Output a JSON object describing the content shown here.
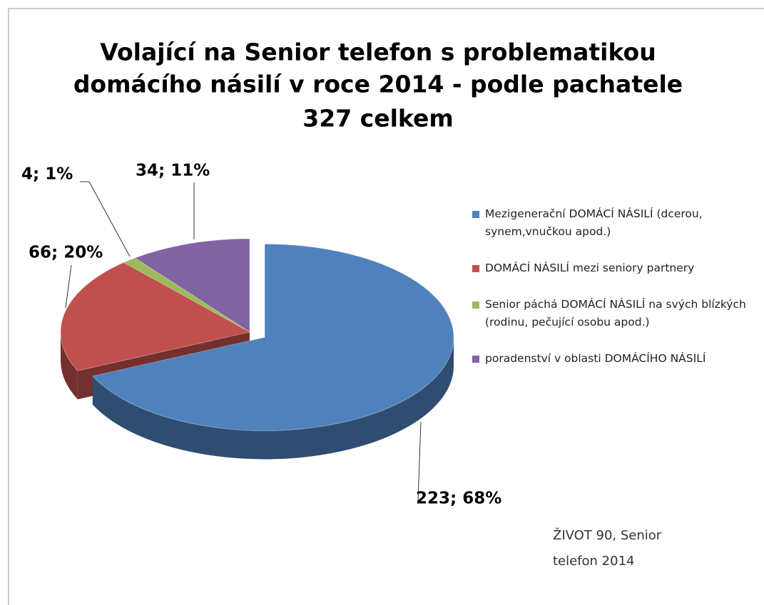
{
  "chart_data": {
    "type": "pie",
    "title": [
      "Volající na Senior telefon s problematikou",
      "domácího násilí v roce 2014 - podle pachatele"
    ],
    "subtitle": "327 celkem",
    "categories": [
      "Mezigenerační DOMÁCÍ NÁSILÍ (dcerou, synem,vnučkou apod.)",
      "DOMÁCÍ NÁSILÍ mezi seniory partnery",
      "Senior páchá DOMÁCÍ NÁSILÍ na svých blízkých (rodinu, pečující osobu apod.)",
      "poradenství v oblasti DOMÁCÍHO NÁSILÍ"
    ],
    "values": [
      223,
      66,
      4,
      34
    ],
    "value_labels": [
      "223; 68%",
      "66; 20%",
      "4; 1%",
      "34; 11%"
    ],
    "colors": [
      "#4f81bd",
      "#c0504d",
      "#9bbb59",
      "#8064a2"
    ],
    "legend": "right",
    "annotation": [
      "ŽIVOT 90, Senior",
      "telefon  2014"
    ]
  }
}
